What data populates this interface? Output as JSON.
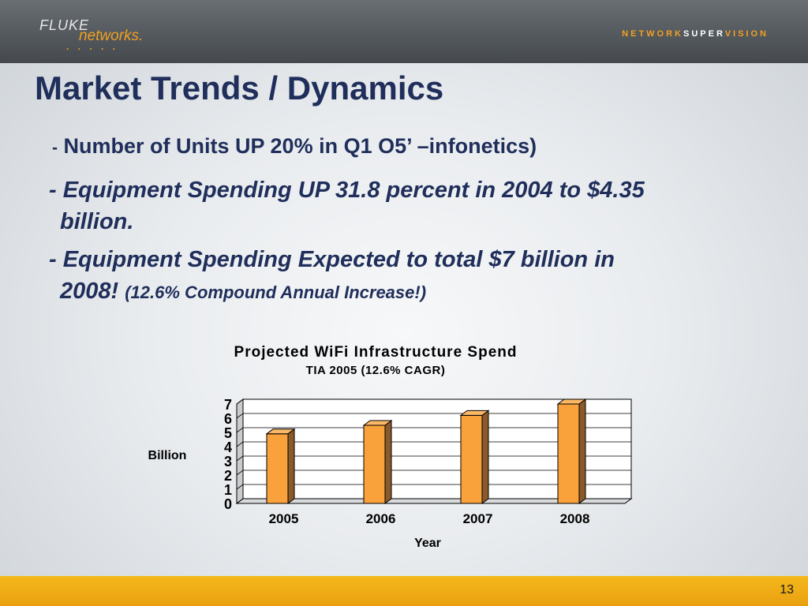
{
  "header": {
    "logo_top": "FLUKE",
    "logo_bottom": "networks.",
    "logo_dots": ". . . . .",
    "tagline_part1": "NETWORK",
    "tagline_part2": "SUPER",
    "tagline_part3": "VISION"
  },
  "slide": {
    "title": "Market Trends / Dynamics",
    "bullet1_dash": "-",
    "bullet1_text": "Number of Units UP 20% in Q1 O5’ –infonetics)",
    "bullet2_line1": "- Equipment Spending UP 31.8 percent in 2004 to $4.35",
    "bullet2_line2": "billion.",
    "bullet3_line1": "- Equipment Spending Expected to total $7 billion in",
    "bullet3_line2a": "2008!",
    "bullet3_line2b": "(12.6% Compound Annual Increase!)"
  },
  "chart_data": {
    "type": "bar",
    "title": "Projected WiFi Infrastructure Spend",
    "subtitle": "TIA 2005  (12.6% CAGR)",
    "xlabel": "Year",
    "ylabel": "Billion",
    "categories": [
      "2005",
      "2006",
      "2007",
      "2008"
    ],
    "values": [
      4.9,
      5.5,
      6.2,
      7.0
    ],
    "ylim": [
      0,
      7
    ],
    "yticks": [
      "0",
      "1",
      "2",
      "3",
      "4",
      "5",
      "6",
      "7"
    ],
    "grid": true,
    "bar_color": "#f9a23c",
    "bar_side_color": "#8a5a2a"
  },
  "footer": {
    "page_number": "13"
  }
}
